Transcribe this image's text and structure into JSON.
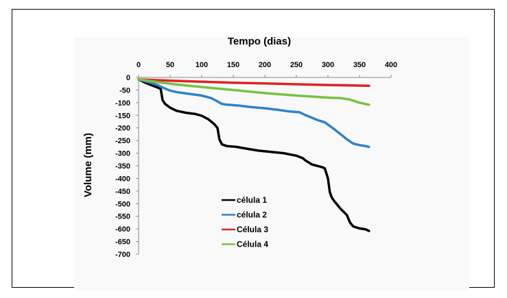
{
  "chart_data": {
    "type": "line",
    "xlabel": "Tempo (dias)",
    "ylabel": "Volume (mm)",
    "xlim": [
      0,
      400
    ],
    "ylim": [
      -700,
      0
    ],
    "x_ticks": [
      0,
      50,
      100,
      150,
      200,
      250,
      300,
      350,
      400
    ],
    "y_ticks": [
      0,
      -50,
      -100,
      -150,
      -200,
      -250,
      -300,
      -350,
      -400,
      -450,
      -500,
      -550,
      -600,
      -650,
      -700
    ],
    "x_axis_position": "top",
    "grid": false,
    "legend_position": "lower-left inside",
    "series": [
      {
        "name": "célula 1",
        "color": "#000000",
        "x": [
          0,
          10,
          20,
          30,
          35,
          38,
          42,
          50,
          60,
          75,
          90,
          100,
          110,
          120,
          125,
          128,
          132,
          140,
          155,
          170,
          190,
          210,
          230,
          250,
          260,
          265,
          275,
          290,
          295,
          300,
          303,
          306,
          310,
          320,
          330,
          335,
          340,
          350,
          360,
          365
        ],
        "y": [
          -8,
          -20,
          -30,
          -40,
          -45,
          -90,
          -105,
          -120,
          -132,
          -140,
          -145,
          -152,
          -165,
          -185,
          -200,
          -245,
          -265,
          -272,
          -275,
          -282,
          -290,
          -295,
          -300,
          -310,
          -320,
          -330,
          -345,
          -355,
          -360,
          -400,
          -455,
          -475,
          -490,
          -520,
          -545,
          -575,
          -590,
          -598,
          -602,
          -608
        ]
      },
      {
        "name": "célula 2",
        "color": "#2f82c8",
        "x": [
          0,
          10,
          20,
          30,
          40,
          50,
          60,
          80,
          100,
          115,
          125,
          132,
          140,
          160,
          180,
          200,
          220,
          240,
          255,
          265,
          275,
          285,
          295,
          310,
          320,
          330,
          340,
          350,
          360,
          365
        ],
        "y": [
          -8,
          -15,
          -22,
          -30,
          -42,
          -52,
          -58,
          -65,
          -72,
          -82,
          -95,
          -105,
          -108,
          -112,
          -118,
          -122,
          -128,
          -135,
          -138,
          -150,
          -160,
          -170,
          -178,
          -205,
          -225,
          -245,
          -262,
          -268,
          -272,
          -275
        ]
      },
      {
        "name": "Célula 3",
        "color": "#e02222",
        "x": [
          0,
          50,
          100,
          150,
          200,
          250,
          300,
          365
        ],
        "y": [
          -8,
          -13,
          -17,
          -21,
          -24,
          -27,
          -30,
          -33
        ]
      },
      {
        "name": "Célula 4",
        "color": "#7ac043",
        "x": [
          0,
          20,
          40,
          60,
          80,
          100,
          130,
          160,
          200,
          250,
          300,
          320,
          335,
          350,
          365
        ],
        "y": [
          -8,
          -15,
          -22,
          -28,
          -33,
          -38,
          -45,
          -52,
          -62,
          -72,
          -80,
          -82,
          -88,
          -100,
          -108
        ]
      }
    ]
  }
}
